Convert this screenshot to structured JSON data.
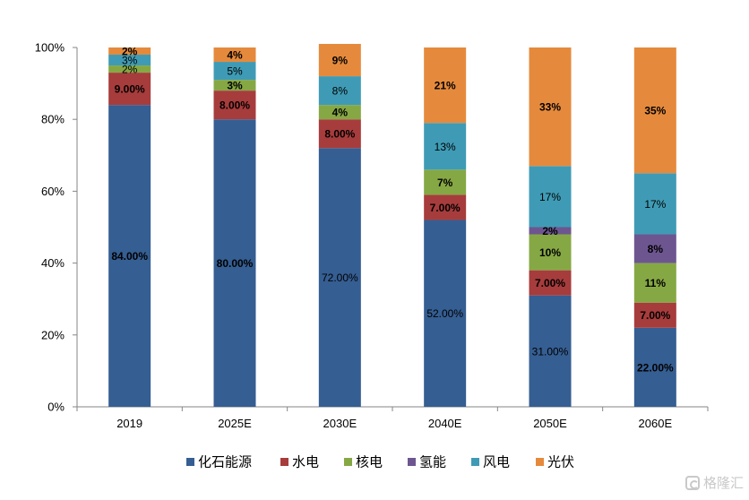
{
  "chart_data": {
    "type": "bar",
    "stacked": true,
    "categories": [
      "2019",
      "2025E",
      "2030E",
      "2040E",
      "2050E",
      "2060E"
    ],
    "ylim": [
      0,
      100
    ],
    "y_ticks": [
      "0%",
      "20%",
      "40%",
      "60%",
      "80%",
      "100%"
    ],
    "legend_position": "bottom",
    "grid": false,
    "series": [
      {
        "name": "化石能源",
        "color": "#355E92",
        "values": [
          84,
          80,
          72,
          52,
          31,
          22
        ],
        "labels": [
          "84.00%",
          "80.00%",
          "72.00%",
          "52.00%",
          "31.00%",
          "22.00%"
        ]
      },
      {
        "name": "水电",
        "color": "#A73C3C",
        "values": [
          9,
          8,
          8,
          7,
          7,
          7
        ],
        "labels": [
          "9.00%",
          "8.00%",
          "8.00%",
          "7.00%",
          "7.00%",
          "7.00%"
        ]
      },
      {
        "name": "核电",
        "color": "#86A844",
        "values": [
          2,
          3,
          4,
          7,
          10,
          11
        ],
        "labels": [
          "2%",
          "3%",
          "4%",
          "7%",
          "10%",
          "11%"
        ]
      },
      {
        "name": "氢能",
        "color": "#6D5690",
        "values": [
          0,
          0,
          0,
          0,
          2,
          8
        ],
        "labels": [
          "",
          "",
          "",
          "",
          "2%",
          "8%"
        ]
      },
      {
        "name": "风电",
        "color": "#3F9BB5",
        "values": [
          3,
          5,
          8,
          13,
          17,
          17
        ],
        "labels": [
          "3%",
          "5%",
          "8%",
          "13%",
          "17%",
          "17%"
        ]
      },
      {
        "name": "光伏",
        "color": "#E58A3C",
        "values": [
          2,
          4,
          9,
          21,
          33,
          35
        ],
        "labels": [
          "2%",
          "4%",
          "9%",
          "21%",
          "33%",
          "35%"
        ]
      }
    ]
  },
  "watermark": {
    "text": "格隆汇"
  }
}
